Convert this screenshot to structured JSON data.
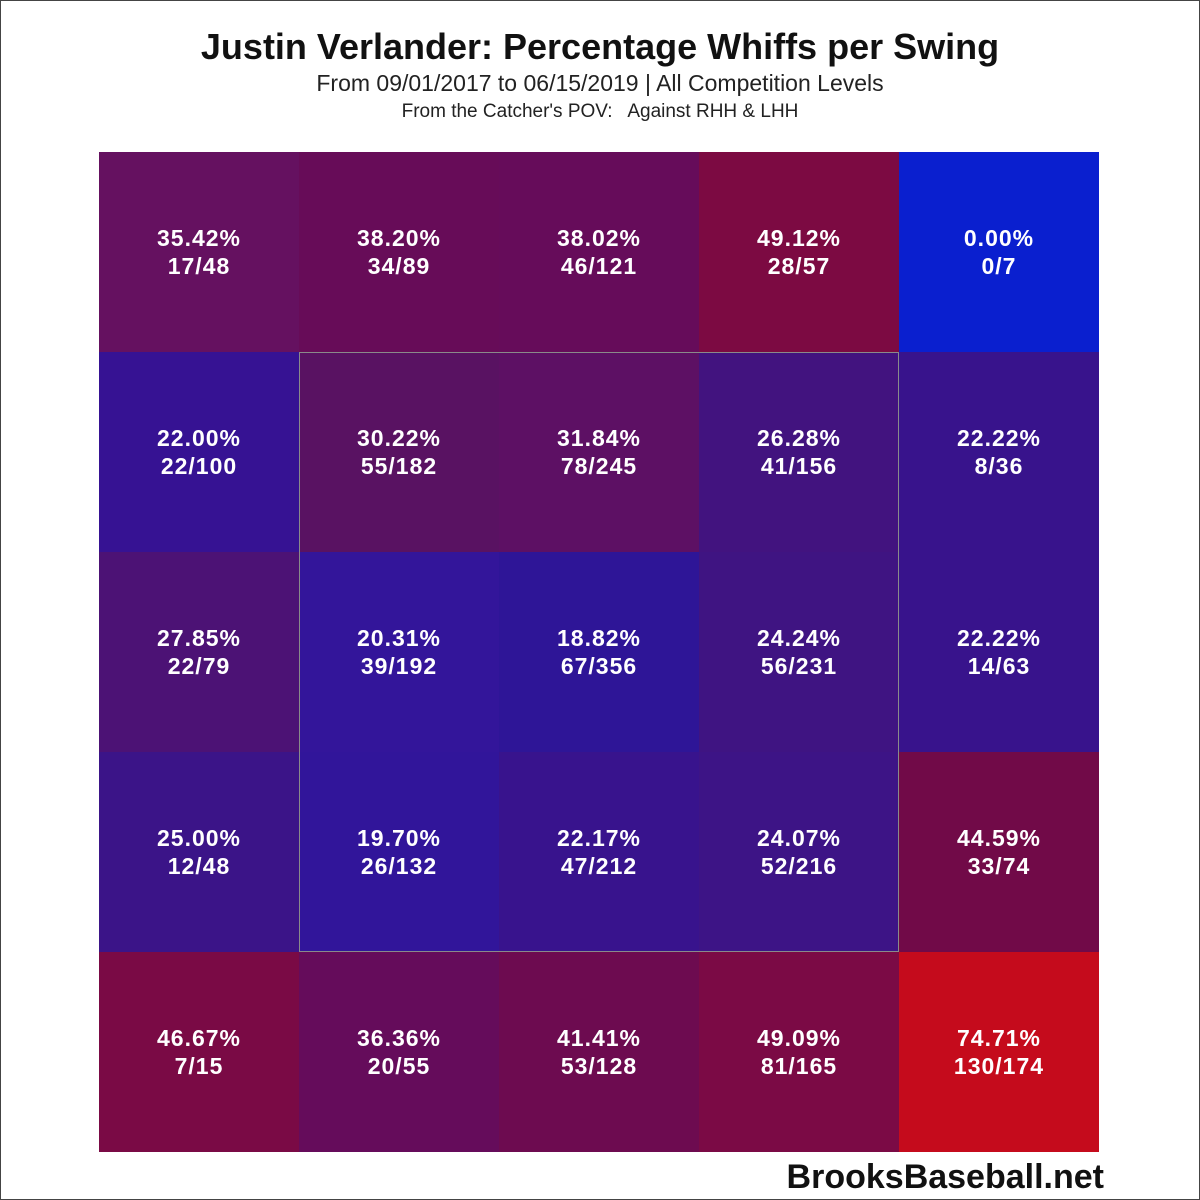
{
  "chart_data": {
    "type": "heatmap",
    "title": "Justin Verlander: Percentage Whiffs per Swing",
    "subtitle": "From 09/01/2017 to 06/15/2019 | All Competition Levels",
    "view_note": "From the Catcher's POV:   Against RHH & LHH",
    "rows": 5,
    "cols": 5,
    "strike_zone": "inner 3x3 cells outlined",
    "cells": [
      [
        {
          "pct": "35.42%",
          "count": "17/48",
          "color": "#651160"
        },
        {
          "pct": "38.20%",
          "count": "34/89",
          "color": "#670c58"
        },
        {
          "pct": "38.02%",
          "count": "46/121",
          "color": "#660c5a"
        },
        {
          "pct": "49.12%",
          "count": "28/57",
          "color": "#7c0a42"
        },
        {
          "pct": "0.00%",
          "count": "0/7",
          "color": "#0a1fcf"
        }
      ],
      [
        {
          "pct": "22.00%",
          "count": "22/100",
          "color": "#361293"
        },
        {
          "pct": "30.22%",
          "count": "55/182",
          "color": "#591262"
        },
        {
          "pct": "31.84%",
          "count": "78/245",
          "color": "#5d1064"
        },
        {
          "pct": "26.28%",
          "count": "41/156",
          "color": "#42137f"
        },
        {
          "pct": "22.22%",
          "count": "8/36",
          "color": "#38138c"
        }
      ],
      [
        {
          "pct": "27.85%",
          "count": "22/79",
          "color": "#4c1275"
        },
        {
          "pct": "20.31%",
          "count": "39/192",
          "color": "#33159a"
        },
        {
          "pct": "18.82%",
          "count": "67/356",
          "color": "#2e1597"
        },
        {
          "pct": "24.24%",
          "count": "56/231",
          "color": "#3f1482"
        },
        {
          "pct": "22.22%",
          "count": "14/63",
          "color": "#38138c"
        }
      ],
      [
        {
          "pct": "25.00%",
          "count": "12/48",
          "color": "#3b1488"
        },
        {
          "pct": "19.70%",
          "count": "26/132",
          "color": "#31159a"
        },
        {
          "pct": "22.17%",
          "count": "47/212",
          "color": "#38138d"
        },
        {
          "pct": "24.07%",
          "count": "52/216",
          "color": "#3d1486"
        },
        {
          "pct": "44.59%",
          "count": "33/74",
          "color": "#710a48"
        }
      ],
      [
        {
          "pct": "46.67%",
          "count": "7/15",
          "color": "#7a0a45"
        },
        {
          "pct": "36.36%",
          "count": "20/55",
          "color": "#650c5b"
        },
        {
          "pct": "41.41%",
          "count": "53/128",
          "color": "#6d0b50"
        },
        {
          "pct": "49.09%",
          "count": "81/165",
          "color": "#7b0a45"
        },
        {
          "pct": "74.71%",
          "count": "130/174",
          "color": "#c50b1c"
        }
      ]
    ]
  },
  "watermark": "BrooksBaseball.net"
}
